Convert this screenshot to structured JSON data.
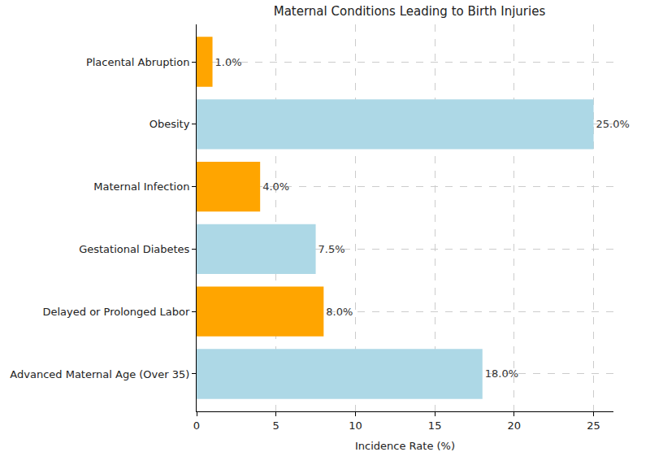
{
  "chart_data": {
    "type": "bar",
    "orientation": "horizontal",
    "title": "Maternal Conditions Leading to Birth Injuries",
    "x_label": "Incidence Rate (%)",
    "categories": [
      "Advanced Maternal Age (Over 35)",
      "Delayed or Prolonged Labor",
      "Gestational Diabetes",
      "Maternal Infection",
      "Obesity",
      "Placental Abruption"
    ],
    "values": [
      18,
      8,
      7.5,
      4,
      25,
      1
    ],
    "value_labels": [
      "18.0%",
      "8.0%",
      "7.5%",
      "4.0%",
      "25.0%",
      "1.0%"
    ],
    "colors": [
      "#add8e6",
      "#ffa500",
      "#add8e6",
      "#ffa500",
      "#add8e6",
      "#ffa500"
    ],
    "xlim": [
      0,
      26.25
    ],
    "xticks": [
      0,
      5,
      10,
      15,
      20,
      25
    ],
    "grid": true,
    "data_labels": true
  }
}
